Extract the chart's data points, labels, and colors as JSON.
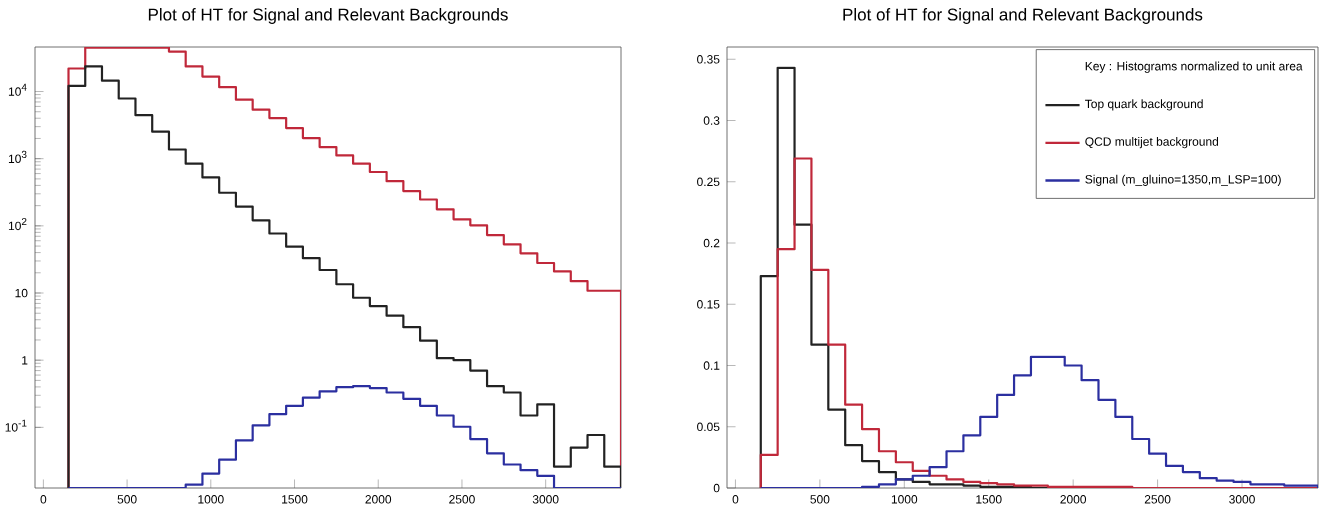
{
  "chart_data": [
    {
      "type": "histogram",
      "title": "Plot of HT for Signal and Relevant Backgrounds",
      "log": "y",
      "bins": [
        150,
        250,
        350,
        450,
        550,
        650,
        750,
        850,
        950,
        1050,
        1150,
        1250,
        1350,
        1450,
        1550,
        1650,
        1750,
        1850,
        1950,
        2050,
        2150,
        2250,
        2350,
        2450,
        2550,
        2650,
        2750,
        2850,
        2950,
        3050,
        3150,
        3250,
        3350,
        3450
      ],
      "series": [
        {
          "color": "#c0283a",
          "values": [
            22000,
            45000,
            45000,
            45000,
            45000,
            45000,
            39400,
            23600,
            16700,
            11600,
            7550,
            5360,
            4030,
            2860,
            2030,
            1490,
            1120,
            842,
            633,
            463,
            329,
            247,
            176,
            125,
            102,
            73,
            53,
            39,
            28,
            21,
            15,
            10.8,
            10.8
          ]
        },
        {
          "color": "#222222",
          "values": [
            12100,
            23600,
            14500,
            7870,
            4450,
            2520,
            1370,
            842,
            526,
            311,
            194,
            121,
            77,
            49,
            33,
            22,
            13.5,
            8.5,
            6.4,
            4.6,
            3.1,
            1.95,
            1.07,
            1.0,
            0.7,
            0.41,
            0.33,
            0.15,
            0.22,
            0.026,
            0.05,
            0.077,
            0.026
          ]
        },
        {
          "color": "#2b2fa0",
          "values": [
            null,
            null,
            null,
            null,
            null,
            null,
            null,
            0.014,
            0.0205,
            0.033,
            0.064,
            0.107,
            0.157,
            0.209,
            0.277,
            0.344,
            0.396,
            0.41,
            0.385,
            0.33,
            0.266,
            0.209,
            0.15,
            0.102,
            0.067,
            0.041,
            0.028,
            0.023,
            0.019,
            null,
            null,
            null,
            null
          ]
        }
      ],
      "xlim": [
        -50,
        3450
      ],
      "xticks": [
        0,
        500,
        1000,
        1500,
        2000,
        2500,
        3000
      ],
      "ylim": [
        0.0125,
        46000
      ],
      "yticks": [
        {
          "value": 0.1,
          "label": "10$^{-1}$"
        },
        1,
        10,
        {
          "value": 100,
          "label": "10$^{2}$"
        },
        {
          "value": 1000,
          "label": "10$^{3}$"
        },
        {
          "value": 10000,
          "label": "10$^{4}$"
        }
      ]
    },
    {
      "type": "histogram",
      "title": "Plot of HT for Signal and Relevant Backgrounds",
      "legend": "top right",
      "legend_title": "Key : Histograms normalized to unit area",
      "bins": [
        150,
        250,
        350,
        450,
        550,
        650,
        750,
        850,
        950,
        1050,
        1150,
        1250,
        1350,
        1450,
        1550,
        1650,
        1750,
        1850,
        1950,
        2050,
        2150,
        2250,
        2350,
        2450,
        2550,
        2650,
        2750,
        2850,
        2950,
        3050,
        3150,
        3250,
        3350,
        3450
      ],
      "series": [
        {
          "name": "Top quark background",
          "color": "#222222",
          "values": [
            0.173,
            0.343,
            0.215,
            0.117,
            0.064,
            0.035,
            0.022,
            0.013,
            0.007,
            0.005,
            0.003,
            0.003,
            0.002,
            0.001,
            0.001,
            0.001,
            0,
            0,
            0,
            0,
            0,
            0,
            0,
            0,
            0,
            0,
            0,
            0,
            0,
            0,
            0,
            0,
            0
          ]
        },
        {
          "name": "QCD multijet background",
          "color": "#c0283a",
          "values": [
            0.027,
            0.195,
            0.269,
            0.178,
            0.117,
            0.068,
            0.048,
            0.03,
            0.021,
            0.014,
            0.01,
            0.007,
            0.005,
            0.004,
            0.003,
            0.002,
            0.002,
            0.001,
            0.001,
            0.001,
            0.001,
            0.001,
            0,
            0,
            0,
            0,
            0,
            0,
            0,
            0,
            0,
            0,
            0
          ]
        },
        {
          "name": "Signal (m_gluino=1350,m_LSP=100)",
          "color": "#2b2fa0",
          "values": [
            0,
            0,
            0,
            0,
            0,
            0,
            0.001,
            0.003,
            0.007,
            0.01,
            0.017,
            0.03,
            0.043,
            0.058,
            0.076,
            0.092,
            0.107,
            0.107,
            0.1,
            0.088,
            0.072,
            0.058,
            0.04,
            0.028,
            0.018,
            0.013,
            0.008,
            0.006,
            0.005,
            0.003,
            0.003,
            0.002,
            0.002
          ]
        }
      ],
      "xlim": [
        -50,
        3450
      ],
      "xticks": [
        0,
        500,
        1000,
        1500,
        2000,
        2500,
        3000
      ],
      "ylim": [
        0,
        0.36
      ],
      "yticks": [
        0,
        0.05,
        0.1,
        0.15,
        0.2,
        0.25,
        0.3,
        0.35
      ]
    }
  ]
}
